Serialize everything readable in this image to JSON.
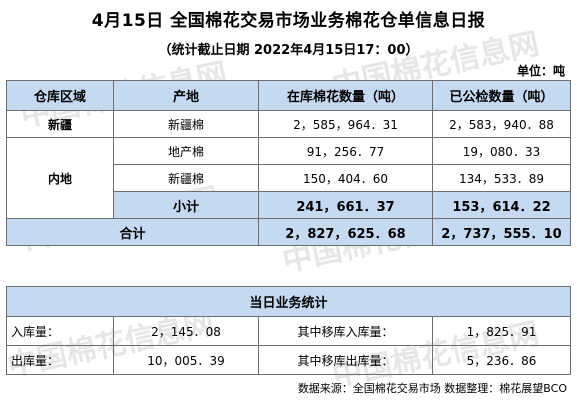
{
  "title": "4月15日 全国棉花交易市场业务棉花仓单信息日报",
  "subtitle": "（统计截止日期 2022年4月15日17：00）",
  "unit": "单位：吨",
  "watermark": "中国棉花信息网",
  "table1": {
    "headers": [
      "仓库区域",
      "产地",
      "在库棉花数量（吨）",
      "已公检数量（吨）"
    ],
    "xinjiang": {
      "region": "新疆",
      "origin": "新疆棉",
      "stock": "2，585，964．31",
      "inspected": "2，583，940．88"
    },
    "neidi": {
      "region": "内地",
      "rows": [
        {
          "origin": "地产棉",
          "stock": "91，256．77",
          "inspected": "19，080．33"
        },
        {
          "origin": "新疆棉",
          "stock": "150，404．60",
          "inspected": "134，533．89"
        }
      ],
      "subtotal_label": "小计",
      "subtotal_stock": "241，661．37",
      "subtotal_inspected": "153，614．22"
    },
    "total_label": "合计",
    "total_stock": "2，827，625．68",
    "total_inspected": "2，737，555．10"
  },
  "table2": {
    "header": "当日业务统计",
    "rows": [
      {
        "label": "入库量：",
        "value": "2，145．08",
        "label2": "其中移库入库量：",
        "value2": "1，825．91"
      },
      {
        "label": "出库量：",
        "value": "10，005．39",
        "label2": "其中移库出库量：",
        "value2": "5，236．86"
      }
    ]
  },
  "source": "数据来源：全国棉花交易市场 数据整理：棉花展望BCO"
}
